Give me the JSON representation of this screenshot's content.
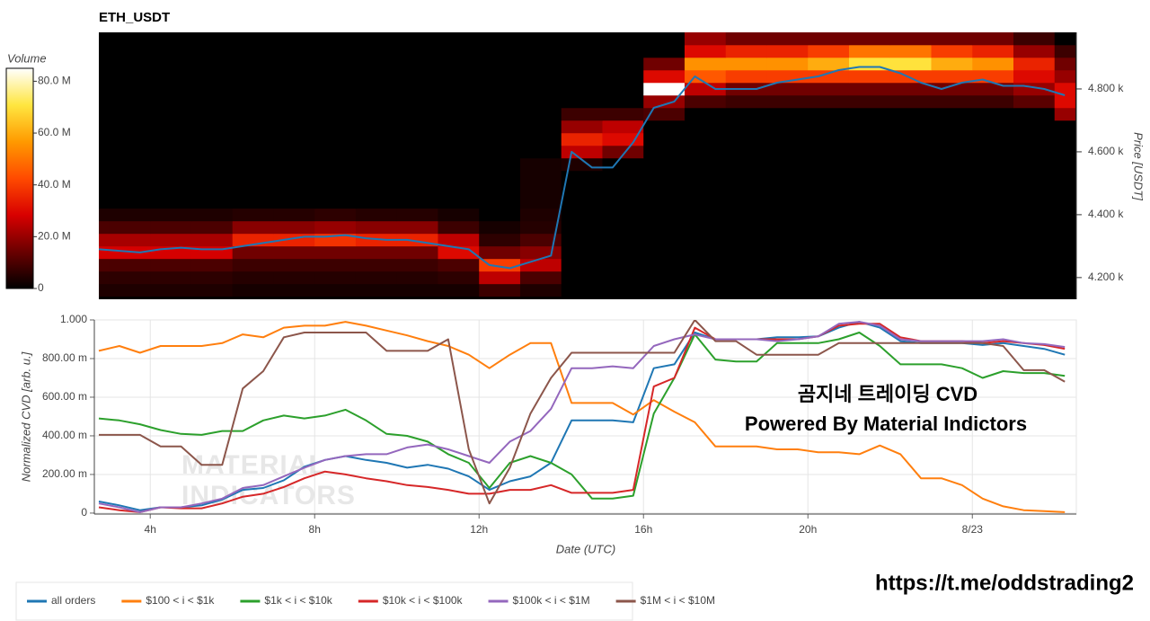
{
  "chart_data": [
    {
      "type": "heatmap",
      "title": "ETH_USDT",
      "ylabel": "Price [USDT]",
      "xlim": [
        2.75,
        26.53
      ],
      "ylim": [
        4131,
        4980
      ],
      "yticks": [
        {
          "value": 4200,
          "label": "4.200 k"
        },
        {
          "value": 4400,
          "label": "4.400 k"
        },
        {
          "value": 4600,
          "label": "4.600 k"
        },
        {
          "value": 4800,
          "label": "4.800 k"
        }
      ],
      "x_bins": [
        2.75,
        3,
        4,
        5,
        6,
        7,
        8,
        9,
        10,
        11,
        12,
        13,
        14,
        15,
        16,
        17,
        18,
        19,
        20,
        21,
        22,
        23,
        24,
        25,
        26,
        26.5
      ],
      "y_bins": [
        4140,
        4180,
        4220,
        4260,
        4300,
        4340,
        4380,
        4420,
        4460,
        4500,
        4540,
        4580,
        4620,
        4660,
        4700,
        4740,
        4780,
        4820,
        4860,
        4900,
        4940,
        4980
      ],
      "z": [
        [
          4,
          4,
          4,
          4,
          3,
          3,
          3,
          3,
          3,
          3,
          8,
          4,
          0,
          0,
          0,
          0,
          0,
          0,
          0,
          0,
          0,
          0,
          0,
          0,
          0
        ],
        [
          6,
          6,
          6,
          6,
          5,
          5,
          5,
          5,
          5,
          6,
          25,
          10,
          0,
          0,
          0,
          0,
          0,
          0,
          0,
          0,
          0,
          0,
          0,
          0,
          0
        ],
        [
          10,
          10,
          10,
          10,
          8,
          8,
          8,
          8,
          8,
          10,
          40,
          25,
          0,
          0,
          0,
          0,
          0,
          0,
          0,
          0,
          0,
          0,
          0,
          0,
          0
        ],
        [
          28,
          28,
          28,
          28,
          15,
          15,
          15,
          15,
          15,
          30,
          15,
          18,
          0,
          0,
          0,
          0,
          0,
          0,
          0,
          0,
          0,
          0,
          0,
          0,
          0
        ],
        [
          22,
          22,
          22,
          22,
          35,
          35,
          38,
          35,
          35,
          25,
          6,
          10,
          0,
          0,
          0,
          0,
          0,
          0,
          0,
          0,
          0,
          0,
          0,
          0,
          0
        ],
        [
          10,
          10,
          10,
          10,
          18,
          18,
          20,
          18,
          18,
          8,
          3,
          5,
          0,
          0,
          0,
          0,
          0,
          0,
          0,
          0,
          0,
          0,
          0,
          0,
          0
        ],
        [
          4,
          4,
          4,
          4,
          5,
          5,
          6,
          5,
          5,
          3,
          0,
          4,
          0,
          0,
          0,
          0,
          0,
          0,
          0,
          0,
          0,
          0,
          0,
          0,
          0
        ],
        [
          0,
          0,
          0,
          0,
          0,
          0,
          0,
          0,
          0,
          0,
          0,
          3,
          0,
          0,
          0,
          0,
          0,
          0,
          0,
          0,
          0,
          0,
          0,
          0,
          0
        ],
        [
          0,
          0,
          0,
          0,
          0,
          0,
          0,
          0,
          0,
          0,
          0,
          3,
          0,
          0,
          0,
          0,
          0,
          0,
          0,
          0,
          0,
          0,
          0,
          0,
          0
        ],
        [
          0,
          0,
          0,
          0,
          0,
          0,
          0,
          0,
          0,
          0,
          0,
          3,
          0,
          0,
          0,
          0,
          0,
          0,
          0,
          0,
          0,
          0,
          0,
          0,
          0
        ],
        [
          0,
          0,
          0,
          0,
          0,
          0,
          0,
          0,
          0,
          0,
          0,
          3,
          4,
          0,
          0,
          0,
          0,
          0,
          0,
          0,
          0,
          0,
          0,
          0,
          0
        ],
        [
          0,
          0,
          0,
          0,
          0,
          0,
          0,
          0,
          0,
          0,
          0,
          0,
          25,
          15,
          0,
          0,
          0,
          0,
          0,
          0,
          0,
          0,
          0,
          0,
          0
        ],
        [
          0,
          0,
          0,
          0,
          0,
          0,
          0,
          0,
          0,
          0,
          0,
          0,
          35,
          30,
          0,
          0,
          0,
          0,
          0,
          0,
          0,
          0,
          0,
          0,
          0
        ],
        [
          0,
          0,
          0,
          0,
          0,
          0,
          0,
          0,
          0,
          0,
          0,
          0,
          20,
          25,
          0,
          0,
          0,
          0,
          0,
          0,
          0,
          0,
          0,
          0,
          0
        ],
        [
          0,
          0,
          0,
          0,
          0,
          0,
          0,
          0,
          0,
          0,
          0,
          0,
          8,
          8,
          10,
          0,
          0,
          0,
          0,
          0,
          0,
          0,
          0,
          0,
          20
        ],
        [
          0,
          0,
          0,
          0,
          0,
          0,
          0,
          0,
          0,
          0,
          0,
          0,
          0,
          0,
          20,
          10,
          8,
          8,
          8,
          8,
          8,
          8,
          8,
          12,
          30
        ],
        [
          0,
          0,
          0,
          0,
          0,
          0,
          0,
          0,
          0,
          0,
          0,
          0,
          0,
          0,
          85,
          25,
          15,
          15,
          15,
          15,
          15,
          15,
          15,
          20,
          30
        ],
        [
          0,
          0,
          0,
          0,
          0,
          0,
          0,
          0,
          0,
          0,
          0,
          0,
          0,
          0,
          30,
          45,
          40,
          40,
          40,
          40,
          40,
          40,
          40,
          30,
          20
        ],
        [
          0,
          0,
          0,
          0,
          0,
          0,
          0,
          0,
          0,
          0,
          0,
          0,
          0,
          0,
          15,
          55,
          55,
          55,
          60,
          70,
          70,
          60,
          55,
          35,
          15
        ],
        [
          0,
          0,
          0,
          0,
          0,
          0,
          0,
          0,
          0,
          0,
          0,
          0,
          0,
          0,
          0,
          30,
          35,
          35,
          40,
          50,
          50,
          40,
          35,
          20,
          8
        ],
        [
          0,
          0,
          0,
          0,
          0,
          0,
          0,
          0,
          0,
          0,
          0,
          0,
          0,
          0,
          0,
          20,
          15,
          15,
          15,
          15,
          15,
          15,
          15,
          8,
          0
        ]
      ],
      "colormap": [
        "#000000",
        "#6a0000",
        "#d80000",
        "#ff4a00",
        "#ff9a00",
        "#ffe640",
        "#ffffff"
      ],
      "colorbar": {
        "label": "Volume",
        "lim": [
          0,
          85
        ],
        "ticks": [
          0,
          {
            "value": 20,
            "label": "20.0 M"
          },
          {
            "value": 40,
            "label": "40.0 M"
          },
          {
            "value": 60,
            "label": "60.0 M"
          },
          {
            "value": 80,
            "label": "80.0 M"
          }
        ]
      },
      "price_line": {
        "color": "#1f77b4",
        "x": [
          2.75,
          3.25,
          3.75,
          4.25,
          4.75,
          5.25,
          5.75,
          6.25,
          6.75,
          7.25,
          7.75,
          8.25,
          8.75,
          9.25,
          9.75,
          10.25,
          10.75,
          11.25,
          11.75,
          12.25,
          12.75,
          13.25,
          13.75,
          14.25,
          14.75,
          15.25,
          15.75,
          16.25,
          16.75,
          17.25,
          17.75,
          18.25,
          18.75,
          19.25,
          19.75,
          20.25,
          20.75,
          21.25,
          21.75,
          22.25,
          22.75,
          23.25,
          23.75,
          24.25,
          24.75,
          25.25,
          25.75,
          26.25
        ],
        "values": [
          4290,
          4285,
          4280,
          4290,
          4295,
          4290,
          4290,
          4300,
          4310,
          4320,
          4330,
          4330,
          4335,
          4325,
          4320,
          4320,
          4310,
          4300,
          4290,
          4240,
          4230,
          4250,
          4270,
          4600,
          4550,
          4550,
          4630,
          4740,
          4760,
          4840,
          4800,
          4800,
          4800,
          4820,
          4830,
          4840,
          4860,
          4870,
          4870,
          4850,
          4820,
          4800,
          4820,
          4830,
          4810,
          4810,
          4800,
          4780
        ]
      }
    },
    {
      "type": "line",
      "xlabel": "Date (UTC)",
      "ylabel": "Normalized CVD [arb. u.]",
      "xlim": [
        2.64,
        26.53
      ],
      "ylim": [
        -0.005,
        1.0
      ],
      "grid": true,
      "xticks": [
        {
          "value": 4,
          "label": "4h"
        },
        {
          "value": 8,
          "label": "8h"
        },
        {
          "value": 12,
          "label": "12h"
        },
        {
          "value": 16,
          "label": "16h"
        },
        {
          "value": 20,
          "label": "20h"
        },
        {
          "value": 24,
          "label": "8/23"
        }
      ],
      "yticks": [
        0,
        {
          "value": 0.2,
          "label": "200.00 m"
        },
        {
          "value": 0.4,
          "label": "400.00 m"
        },
        {
          "value": 0.6,
          "label": "600.00 m"
        },
        {
          "value": 0.8,
          "label": "800.00 m"
        },
        {
          "value": 1,
          "label": "1.000"
        }
      ],
      "x": [
        2.75,
        3.25,
        3.75,
        4.25,
        4.75,
        5.25,
        5.75,
        6.25,
        6.75,
        7.25,
        7.75,
        8.25,
        8.75,
        9.25,
        9.75,
        10.25,
        10.75,
        11.25,
        11.75,
        12.25,
        12.75,
        13.25,
        13.75,
        14.25,
        14.75,
        15.25,
        15.75,
        16.25,
        16.75,
        17.25,
        17.75,
        18.25,
        18.75,
        19.25,
        19.75,
        20.25,
        20.75,
        21.25,
        21.75,
        22.25,
        22.75,
        23.25,
        23.75,
        24.25,
        24.75,
        25.25,
        25.75,
        26.25
      ],
      "series": [
        {
          "name": "all orders",
          "color": "#1f77b4",
          "values": [
            0.06,
            0.04,
            0.015,
            0.03,
            0.03,
            0.04,
            0.07,
            0.12,
            0.13,
            0.17,
            0.24,
            0.275,
            0.295,
            0.275,
            0.26,
            0.235,
            0.25,
            0.23,
            0.19,
            0.12,
            0.165,
            0.19,
            0.26,
            0.48,
            0.48,
            0.48,
            0.47,
            0.75,
            0.77,
            0.935,
            0.9,
            0.9,
            0.9,
            0.91,
            0.91,
            0.915,
            0.96,
            0.99,
            0.96,
            0.89,
            0.88,
            0.88,
            0.88,
            0.87,
            0.88,
            0.865,
            0.85,
            0.82
          ]
        },
        {
          "name": "$100 < i < $1k",
          "color": "#ff7f0e",
          "values": [
            0.84,
            0.865,
            0.83,
            0.865,
            0.865,
            0.865,
            0.88,
            0.925,
            0.91,
            0.96,
            0.97,
            0.97,
            0.99,
            0.97,
            0.945,
            0.92,
            0.89,
            0.865,
            0.82,
            0.75,
            0.82,
            0.88,
            0.88,
            0.57,
            0.57,
            0.57,
            0.51,
            0.585,
            0.525,
            0.47,
            0.345,
            0.345,
            0.345,
            0.33,
            0.33,
            0.315,
            0.315,
            0.305,
            0.35,
            0.305,
            0.18,
            0.18,
            0.145,
            0.075,
            0.035,
            0.015,
            0.01,
            0.005
          ]
        },
        {
          "name": "$1k < i < $10k",
          "color": "#2ca02c",
          "values": [
            0.49,
            0.48,
            0.46,
            0.43,
            0.41,
            0.405,
            0.425,
            0.425,
            0.48,
            0.505,
            0.49,
            0.505,
            0.535,
            0.48,
            0.41,
            0.4,
            0.37,
            0.305,
            0.26,
            0.13,
            0.26,
            0.295,
            0.26,
            0.2,
            0.075,
            0.075,
            0.09,
            0.515,
            0.7,
            0.925,
            0.795,
            0.785,
            0.785,
            0.88,
            0.88,
            0.88,
            0.9,
            0.935,
            0.865,
            0.77,
            0.77,
            0.77,
            0.75,
            0.7,
            0.735,
            0.725,
            0.725,
            0.71
          ]
        },
        {
          "name": "$10k < i < $100k",
          "color": "#d62728",
          "values": [
            0.03,
            0.015,
            0.005,
            0.03,
            0.025,
            0.025,
            0.05,
            0.085,
            0.1,
            0.135,
            0.18,
            0.215,
            0.2,
            0.18,
            0.165,
            0.145,
            0.135,
            0.12,
            0.1,
            0.1,
            0.12,
            0.12,
            0.145,
            0.105,
            0.105,
            0.105,
            0.12,
            0.655,
            0.7,
            0.96,
            0.9,
            0.9,
            0.9,
            0.9,
            0.9,
            0.915,
            0.97,
            0.98,
            0.98,
            0.91,
            0.89,
            0.89,
            0.89,
            0.88,
            0.89,
            0.88,
            0.87,
            0.85
          ]
        },
        {
          "name": "$100k < i < $1M",
          "color": "#9467bd",
          "values": [
            0.05,
            0.03,
            0.005,
            0.03,
            0.03,
            0.05,
            0.075,
            0.13,
            0.145,
            0.19,
            0.235,
            0.275,
            0.295,
            0.305,
            0.305,
            0.34,
            0.355,
            0.33,
            0.295,
            0.26,
            0.37,
            0.425,
            0.54,
            0.75,
            0.75,
            0.76,
            0.75,
            0.865,
            0.9,
            0.925,
            0.9,
            0.9,
            0.9,
            0.89,
            0.9,
            0.915,
            0.98,
            0.99,
            0.97,
            0.9,
            0.89,
            0.89,
            0.89,
            0.89,
            0.9,
            0.88,
            0.875,
            0.86
          ]
        },
        {
          "name": "$1M < i < $10M",
          "color": "#8c564b",
          "values": [
            0.405,
            0.405,
            0.405,
            0.345,
            0.345,
            0.25,
            0.25,
            0.645,
            0.735,
            0.91,
            0.935,
            0.935,
            0.935,
            0.935,
            0.84,
            0.84,
            0.84,
            0.9,
            0.33,
            0.05,
            0.235,
            0.515,
            0.7,
            0.83,
            0.83,
            0.83,
            0.83,
            0.83,
            0.83,
            1.0,
            0.89,
            0.89,
            0.82,
            0.82,
            0.82,
            0.82,
            0.88,
            0.88,
            0.88,
            0.88,
            0.88,
            0.88,
            0.88,
            0.88,
            0.865,
            0.74,
            0.74,
            0.68
          ]
        }
      ],
      "annotations": [
        "곰지네 트레이딩 CVD",
        "Powered By Material Indictors"
      ],
      "watermark": [
        "MATERIAL",
        "INDICATORS"
      ]
    }
  ],
  "link": "https://t.me/oddstrading2"
}
